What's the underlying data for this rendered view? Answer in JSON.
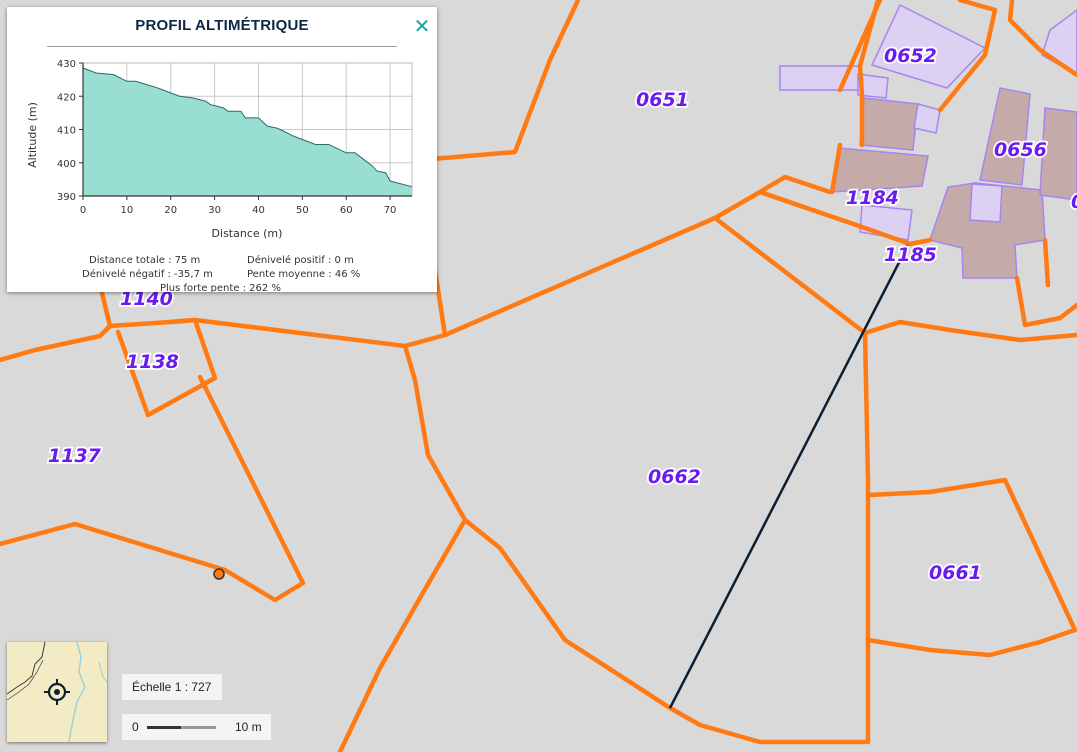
{
  "map": {
    "parcels": [
      {
        "id": "0652",
        "label": "0652"
      },
      {
        "id": "0651",
        "label": "0651"
      },
      {
        "id": "0656",
        "label": "0656"
      },
      {
        "id": "1184",
        "label": "1184"
      },
      {
        "id": "1185",
        "label": "1185"
      },
      {
        "id": "1140",
        "label": "1140"
      },
      {
        "id": "1138",
        "label": "1138"
      },
      {
        "id": "1137",
        "label": "1137"
      },
      {
        "id": "0662",
        "label": "0662"
      },
      {
        "id": "0661",
        "label": "0661"
      },
      {
        "id": "edge",
        "label": "0"
      }
    ],
    "colors": {
      "background": "#d9d9d9",
      "parcel_border": "#ff7a12",
      "label": "#6a1bf0",
      "building_outline": "#a685f0",
      "profile_line": "#0b1f33"
    }
  },
  "profile_panel": {
    "title": "PROFIL ALTIMÉTRIQUE",
    "close_icon": "close-icon",
    "chart_data": {
      "type": "area",
      "xlabel": "Distance (m)",
      "ylabel": "Altitude (m)",
      "xlim": [
        0,
        75
      ],
      "ylim": [
        390,
        430
      ],
      "xticks": [
        "0",
        "10",
        "20",
        "30",
        "40",
        "50",
        "60",
        "70"
      ],
      "yticks": [
        "390",
        "400",
        "410",
        "420",
        "430"
      ],
      "grid": true,
      "fill_color": "#98ded1",
      "line_color": "#2a6b6b",
      "x": [
        0,
        3,
        7,
        10,
        12,
        17,
        18,
        22,
        25,
        28,
        29,
        32,
        33,
        36,
        37,
        40,
        42,
        44,
        45,
        48,
        50,
        53,
        55,
        56,
        60,
        62,
        64,
        66,
        67,
        69,
        70,
        75
      ],
      "y": [
        428.5,
        427.0,
        426.5,
        424.5,
        424.5,
        422.5,
        422.0,
        420.0,
        419.5,
        418.5,
        417.5,
        416.5,
        415.5,
        415.5,
        413.5,
        413.5,
        411.0,
        410.5,
        410.0,
        408.0,
        407.0,
        405.5,
        405.5,
        405.5,
        403.0,
        403.0,
        401.0,
        399.0,
        397.5,
        397.0,
        394.5,
        392.8
      ]
    },
    "stats": {
      "distance_totale": "Distance totale : 75 m",
      "denivele_positif": "Dénivelé positif : 0 m",
      "denivele_negatif": "Dénivelé négatif : -35,7 m",
      "pente_moyenne": "Pente moyenne : 46 %",
      "plus_forte_pente": "Plus forte pente : 262 %"
    }
  },
  "overview_map": {
    "icon": "locate-icon"
  },
  "scale": {
    "echelle": "Échelle 1 : 727",
    "bar_start": "0",
    "bar_end": "10 m"
  }
}
